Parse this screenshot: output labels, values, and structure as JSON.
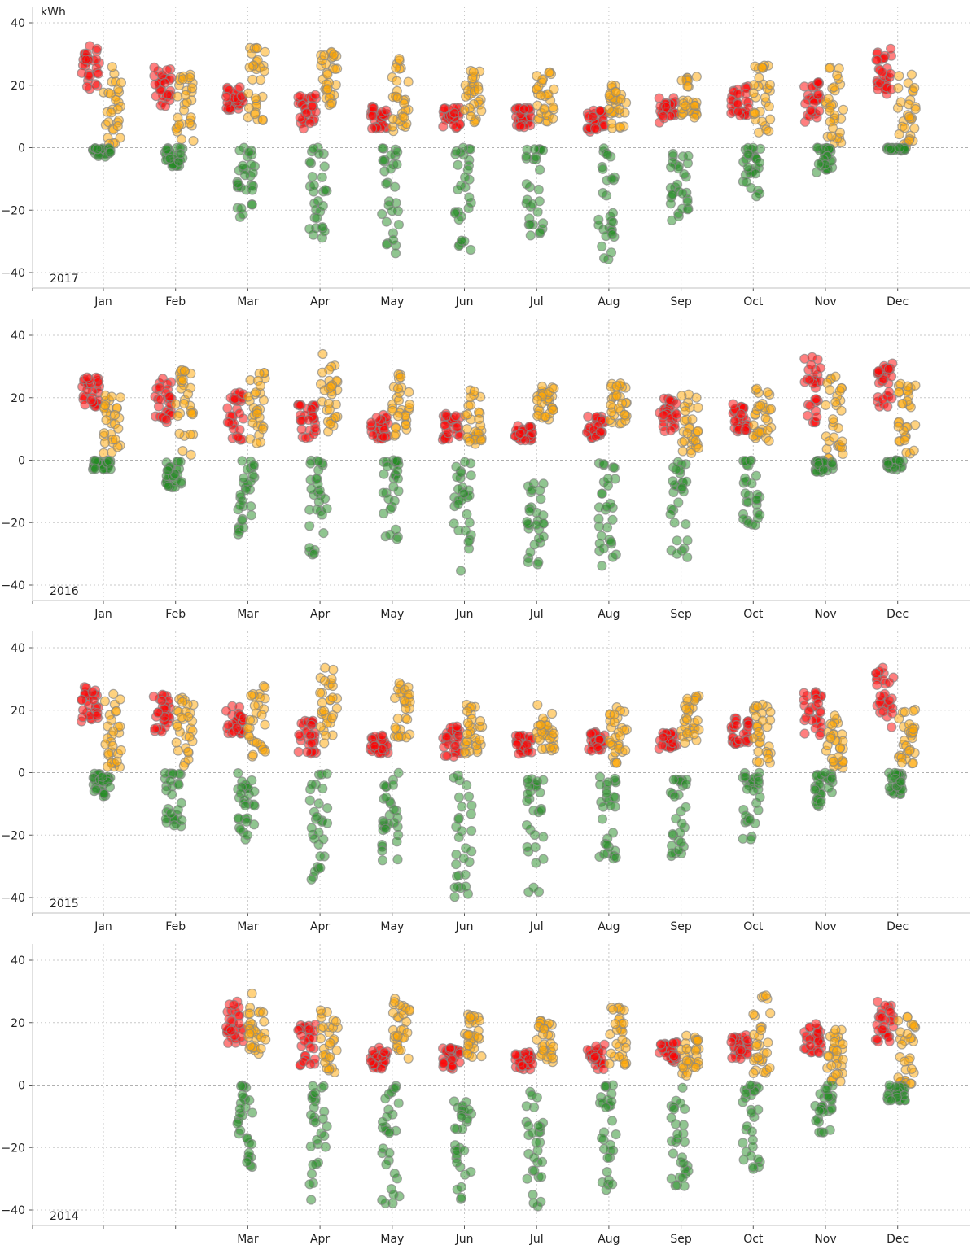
{
  "chart_data": {
    "type": "scatter",
    "title": "",
    "ylabel": "kWh",
    "xlabel": "",
    "ylim": [
      -45,
      45
    ],
    "yticks": [
      -40,
      -20,
      0,
      20,
      40
    ],
    "months": [
      "Jan",
      "Feb",
      "Mar",
      "Apr",
      "May",
      "Jun",
      "Jul",
      "Aug",
      "Sep",
      "Oct",
      "Nov",
      "Dec"
    ],
    "grid": true,
    "series_colors": {
      "consumption": "#ff0000",
      "production": "#ffa500",
      "net": "#228b22"
    },
    "panels": [
      {
        "year": "2017",
        "months": [
          {
            "month": "Jan",
            "consumption": [
              17,
              33
            ],
            "production": [
              1,
              26
            ],
            "net": [
              -3,
              0
            ]
          },
          {
            "month": "Feb",
            "consumption": [
              13,
              26
            ],
            "production": [
              1,
              28
            ],
            "net": [
              -6,
              0
            ]
          },
          {
            "month": "Mar",
            "consumption": [
              12,
              20
            ],
            "production": [
              5,
              33
            ],
            "net": [
              -24,
              0
            ]
          },
          {
            "month": "Apr",
            "consumption": [
              6,
              17
            ],
            "production": [
              12,
              31
            ],
            "net": [
              -30,
              0
            ]
          },
          {
            "month": "May",
            "consumption": [
              6,
              14
            ],
            "production": [
              5,
              29
            ],
            "net": [
              -34,
              0
            ]
          },
          {
            "month": "Jun",
            "consumption": [
              6,
              13
            ],
            "production": [
              8,
              26
            ],
            "net": [
              -34,
              0
            ]
          },
          {
            "month": "Jul",
            "consumption": [
              6,
              13
            ],
            "production": [
              8,
              25
            ],
            "net": [
              -31,
              0
            ]
          },
          {
            "month": "Aug",
            "consumption": [
              5,
              12
            ],
            "production": [
              5,
              20
            ],
            "net": [
              -36,
              0
            ]
          },
          {
            "month": "Sep",
            "consumption": [
              8,
              16
            ],
            "production": [
              9,
              23
            ],
            "net": [
              -25,
              0
            ]
          },
          {
            "month": "Oct",
            "consumption": [
              10,
              20
            ],
            "production": [
              2,
              27
            ],
            "net": [
              -16,
              0
            ]
          },
          {
            "month": "Nov",
            "consumption": [
              8,
              22
            ],
            "production": [
              1,
              26
            ],
            "net": [
              -8,
              0
            ]
          },
          {
            "month": "Dec",
            "consumption": [
              17,
              32
            ],
            "production": [
              0,
              24
            ],
            "net": [
              -1,
              0
            ]
          }
        ]
      },
      {
        "year": "2016",
        "months": [
          {
            "month": "Jan",
            "consumption": [
              17,
              27
            ],
            "production": [
              1,
              21
            ],
            "net": [
              -3,
              0
            ]
          },
          {
            "month": "Feb",
            "consumption": [
              12,
              27
            ],
            "production": [
              1,
              29
            ],
            "net": [
              -9,
              0
            ]
          },
          {
            "month": "Mar",
            "consumption": [
              6,
              22
            ],
            "production": [
              5,
              29
            ],
            "net": [
              -24,
              0
            ]
          },
          {
            "month": "Apr",
            "consumption": [
              7,
              18
            ],
            "production": [
              7,
              34
            ],
            "net": [
              -31,
              0
            ]
          },
          {
            "month": "May",
            "consumption": [
              6,
              15
            ],
            "production": [
              3,
              28
            ],
            "net": [
              -27,
              0
            ]
          },
          {
            "month": "Jun",
            "consumption": [
              6,
              15
            ],
            "production": [
              4,
              23
            ],
            "net": [
              -38,
              0
            ]
          },
          {
            "month": "Jul",
            "consumption": [
              6,
              11
            ],
            "production": [
              13,
              24
            ],
            "net": [
              -35,
              -6
            ]
          },
          {
            "month": "Aug",
            "consumption": [
              7,
              14
            ],
            "production": [
              11,
              25
            ],
            "net": [
              -34,
              0
            ]
          },
          {
            "month": "Sep",
            "consumption": [
              9,
              20
            ],
            "production": [
              2,
              22
            ],
            "net": [
              -32,
              0
            ]
          },
          {
            "month": "Oct",
            "consumption": [
              9,
              19
            ],
            "production": [
              6,
              23
            ],
            "net": [
              -21,
              0
            ]
          },
          {
            "month": "Nov",
            "consumption": [
              12,
              34
            ],
            "production": [
              0,
              27
            ],
            "net": [
              -4,
              0
            ]
          },
          {
            "month": "Dec",
            "consumption": [
              17,
              31
            ],
            "production": [
              2,
              25
            ],
            "net": [
              -3,
              0
            ]
          }
        ]
      },
      {
        "year": "2015",
        "months": [
          {
            "month": "Jan",
            "consumption": [
              16,
              28
            ],
            "production": [
              1,
              26
            ],
            "net": [
              -8,
              0
            ]
          },
          {
            "month": "Feb",
            "consumption": [
              13,
              25
            ],
            "production": [
              1,
              25
            ],
            "net": [
              -18,
              0
            ]
          },
          {
            "month": "Mar",
            "consumption": [
              12,
              22
            ],
            "production": [
              5,
              28
            ],
            "net": [
              -22,
              0
            ]
          },
          {
            "month": "Apr",
            "consumption": [
              6,
              17
            ],
            "production": [
              9,
              34
            ],
            "net": [
              -36,
              0
            ]
          },
          {
            "month": "May",
            "consumption": [
              6,
              12
            ],
            "production": [
              11,
              30
            ],
            "net": [
              -32,
              0
            ]
          },
          {
            "month": "Jun",
            "consumption": [
              5,
              15
            ],
            "production": [
              6,
              22
            ],
            "net": [
              -40,
              0
            ]
          },
          {
            "month": "Jul",
            "consumption": [
              6,
              12
            ],
            "production": [
              7,
              22
            ],
            "net": [
              -39,
              -2
            ]
          },
          {
            "month": "Aug",
            "consumption": [
              7,
              13
            ],
            "production": [
              3,
              22
            ],
            "net": [
              -30,
              0
            ]
          },
          {
            "month": "Sep",
            "consumption": [
              7,
              13
            ],
            "production": [
              8,
              25
            ],
            "net": [
              -27,
              -2
            ]
          },
          {
            "month": "Oct",
            "consumption": [
              9,
              18
            ],
            "production": [
              3,
              22
            ],
            "net": [
              -23,
              0
            ]
          },
          {
            "month": "Nov",
            "consumption": [
              10,
              27
            ],
            "production": [
              1,
              20
            ],
            "net": [
              -11,
              0
            ]
          },
          {
            "month": "Dec",
            "consumption": [
              14,
              34
            ],
            "production": [
              1,
              22
            ],
            "net": [
              -7,
              0
            ]
          }
        ]
      },
      {
        "year": "2014",
        "months": [
          {
            "month": "Mar",
            "consumption": [
              13,
              27
            ],
            "production": [
              10,
              31
            ],
            "net": [
              -28,
              0
            ]
          },
          {
            "month": "Apr",
            "consumption": [
              6,
              20
            ],
            "production": [
              4,
              25
            ],
            "net": [
              -38,
              0
            ]
          },
          {
            "month": "May",
            "consumption": [
              5,
              12
            ],
            "production": [
              6,
              28
            ],
            "net": [
              -40,
              0
            ]
          },
          {
            "month": "Jun",
            "consumption": [
              5,
              12
            ],
            "production": [
              8,
              23
            ],
            "net": [
              -37,
              -5
            ]
          },
          {
            "month": "Jul",
            "consumption": [
              5,
              11
            ],
            "production": [
              6,
              21
            ],
            "net": [
              -41,
              -1
            ]
          },
          {
            "month": "Aug",
            "consumption": [
              5,
              13
            ],
            "production": [
              6,
              25
            ],
            "net": [
              -34,
              0
            ]
          },
          {
            "month": "Sep",
            "consumption": [
              7,
              15
            ],
            "production": [
              3,
              16
            ],
            "net": [
              -33,
              0
            ]
          },
          {
            "month": "Oct",
            "consumption": [
              8,
              16
            ],
            "production": [
              3,
              29
            ],
            "net": [
              -27,
              0
            ]
          },
          {
            "month": "Nov",
            "consumption": [
              10,
              21
            ],
            "production": [
              0,
              18
            ],
            "net": [
              -17,
              0
            ]
          },
          {
            "month": "Dec",
            "consumption": [
              12,
              27
            ],
            "production": [
              0,
              22
            ],
            "net": [
              -5,
              0
            ]
          }
        ]
      }
    ]
  }
}
